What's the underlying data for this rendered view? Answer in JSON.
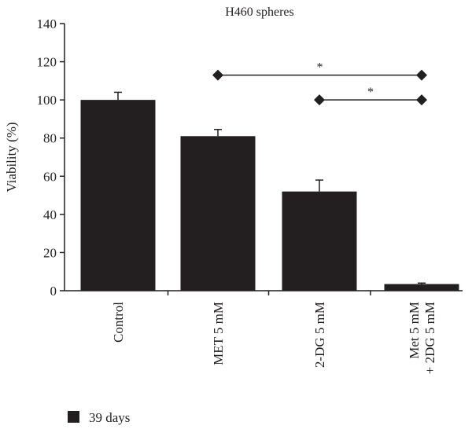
{
  "chart_data": {
    "type": "bar",
    "title": "H460 spheres",
    "xlabel": "",
    "ylabel": "Viability (%)",
    "ylim": [
      0,
      140
    ],
    "yticks": [
      0,
      20,
      40,
      60,
      80,
      100,
      120,
      140
    ],
    "categories": [
      [
        "Control"
      ],
      [
        "MET 5 mM"
      ],
      [
        "2-DG 5 mM"
      ],
      [
        "Met 5 mM",
        "+ 2DG 5 mM"
      ]
    ],
    "series": [
      {
        "name": "39 days",
        "values": [
          100,
          81,
          52,
          3.5
        ],
        "errors": [
          4,
          3.5,
          6,
          0.5
        ]
      }
    ],
    "bar_color": "#231f20",
    "legend": {
      "placement": "bottom-left",
      "label": "39 days"
    },
    "grid": false,
    "significance": [
      {
        "from": 1,
        "to": 3,
        "y": 113,
        "label": "*"
      },
      {
        "from": 2,
        "to": 3,
        "y": 100,
        "label": "*"
      }
    ]
  }
}
